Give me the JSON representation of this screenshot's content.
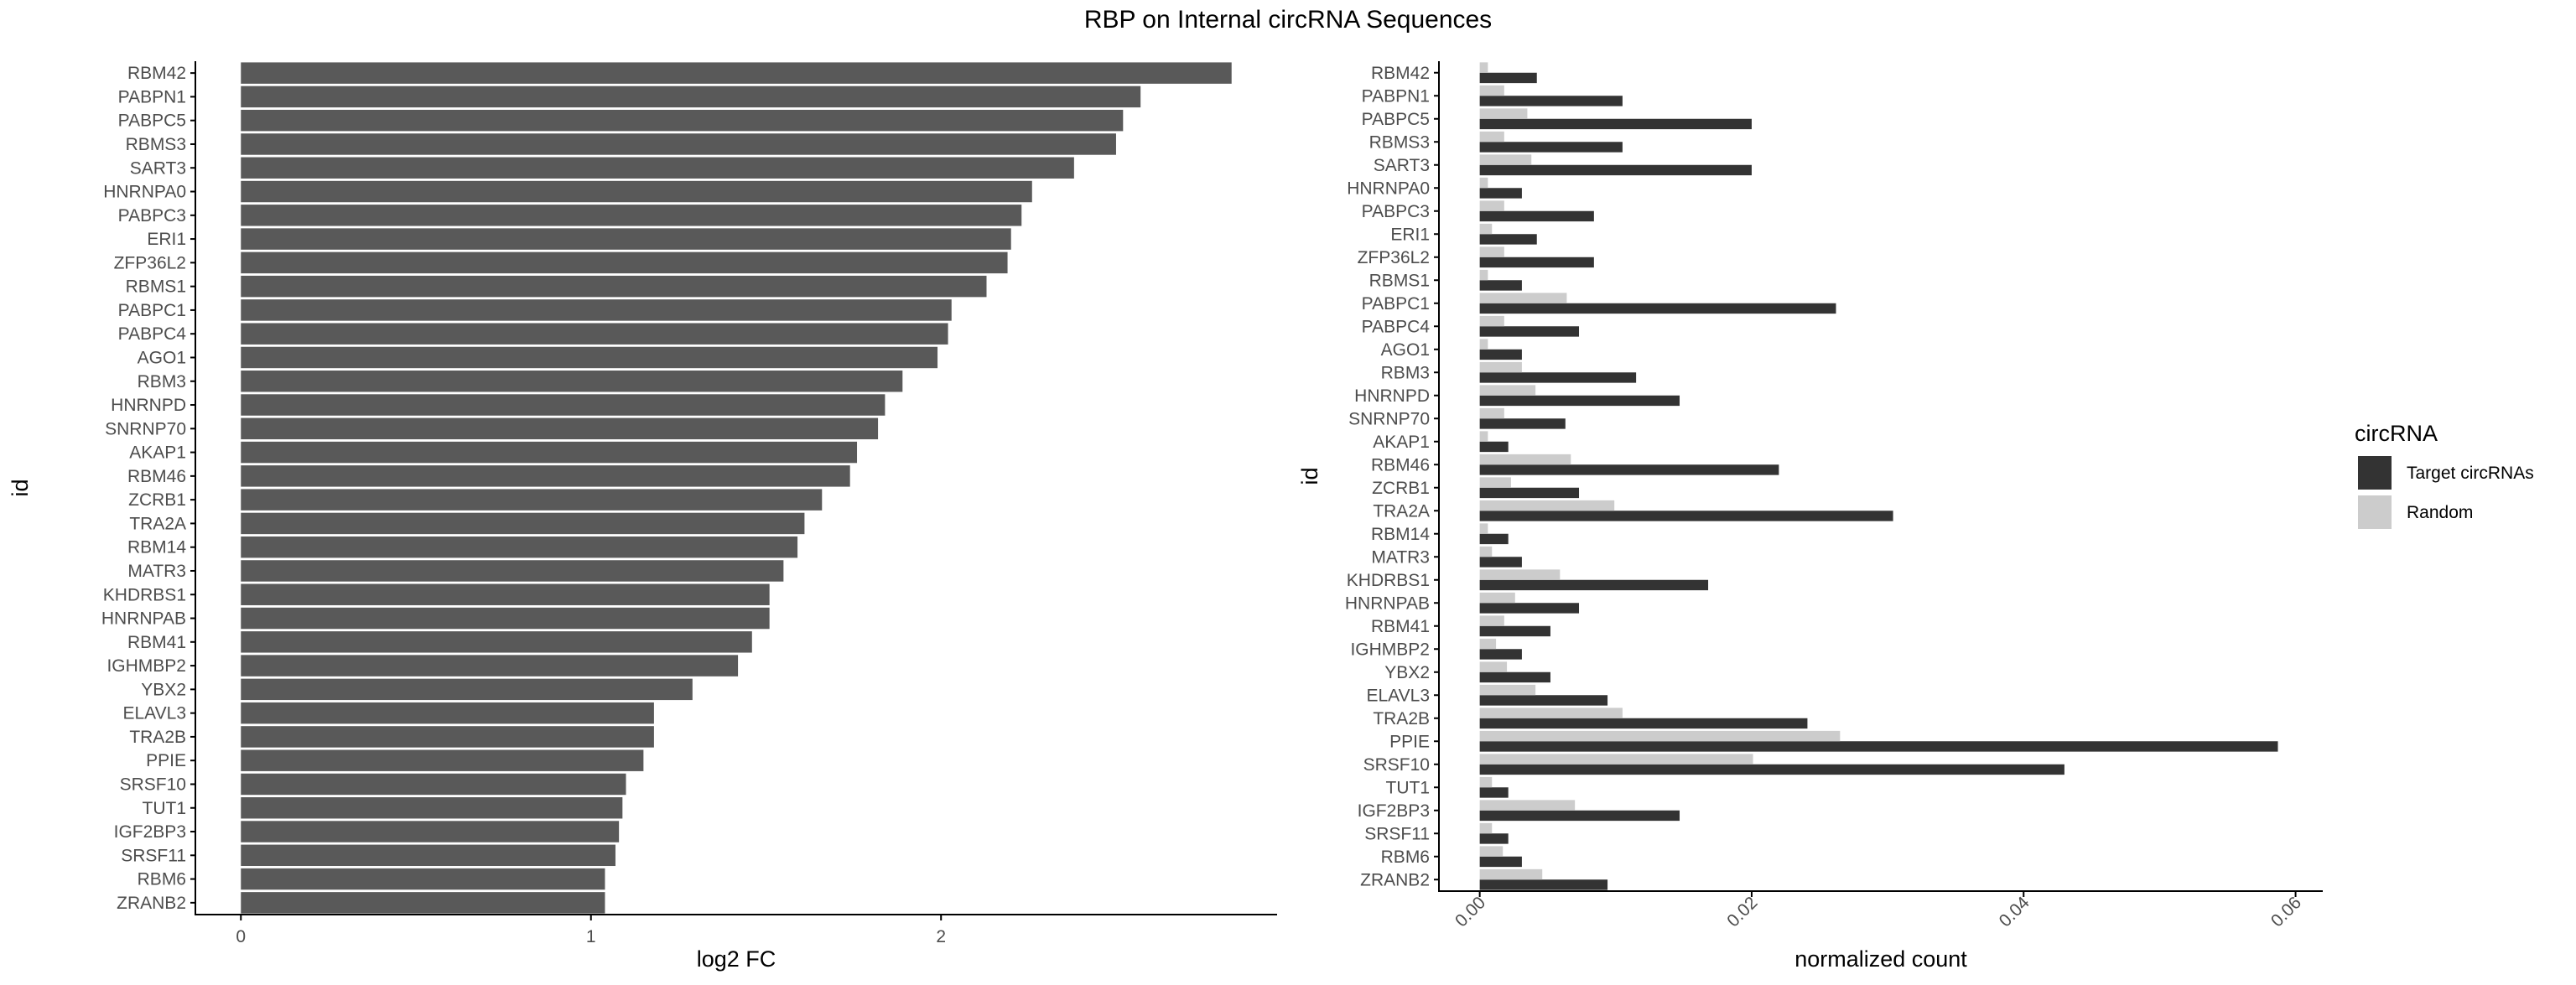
{
  "title": "RBP on Internal circRNA Sequences",
  "colors": {
    "single_bar": "#595959",
    "target": "#333333",
    "random": "#cccccc",
    "axis": "#000000",
    "tick_label": "#4d4d4d"
  },
  "chart_data": [
    {
      "type": "bar",
      "orientation": "horizontal",
      "title": "",
      "xlabel": "log2 FC",
      "ylabel": "id",
      "xlim": [
        -0.13,
        2.96
      ],
      "xticks": [
        0,
        1,
        2
      ],
      "grid": false,
      "categories": [
        "RBM42",
        "PABPN1",
        "PABPC5",
        "RBMS3",
        "SART3",
        "HNRNPA0",
        "PABPC3",
        "ERI1",
        "ZFP36L2",
        "RBMS1",
        "PABPC1",
        "PABPC4",
        "AGO1",
        "RBM3",
        "HNRNPD",
        "SNRNP70",
        "AKAP1",
        "RBM46",
        "ZCRB1",
        "TRA2A",
        "RBM14",
        "MATR3",
        "KHDRBS1",
        "HNRNPAB",
        "RBM41",
        "IGHMBP2",
        "YBX2",
        "ELAVL3",
        "TRA2B",
        "PPIE",
        "SRSF10",
        "TUT1",
        "IGF2BP3",
        "SRSF11",
        "RBM6",
        "ZRANB2"
      ],
      "values": [
        2.83,
        2.57,
        2.52,
        2.5,
        2.38,
        2.26,
        2.23,
        2.2,
        2.19,
        2.13,
        2.03,
        2.02,
        1.99,
        1.89,
        1.84,
        1.82,
        1.76,
        1.74,
        1.66,
        1.61,
        1.59,
        1.55,
        1.51,
        1.51,
        1.46,
        1.42,
        1.29,
        1.18,
        1.18,
        1.15,
        1.1,
        1.09,
        1.08,
        1.07,
        1.04,
        1.04
      ]
    },
    {
      "type": "bar",
      "orientation": "horizontal",
      "grouped": true,
      "title": "",
      "xlabel": "normalized count",
      "ylabel": "id",
      "xlim": [
        -0.003,
        0.062
      ],
      "xticks": [
        0.0,
        0.02,
        0.04,
        0.06
      ],
      "xtick_labels": [
        "0.00",
        "0.02",
        "0.04",
        "0.06"
      ],
      "grid": false,
      "legend": {
        "title": "circRNA",
        "position": "right"
      },
      "categories": [
        "RBM42",
        "PABPN1",
        "PABPC5",
        "RBMS3",
        "SART3",
        "HNRNPA0",
        "PABPC3",
        "ERI1",
        "ZFP36L2",
        "RBMS1",
        "PABPC1",
        "PABPC4",
        "AGO1",
        "RBM3",
        "HNRNPD",
        "SNRNP70",
        "AKAP1",
        "RBM46",
        "ZCRB1",
        "TRA2A",
        "RBM14",
        "MATR3",
        "KHDRBS1",
        "HNRNPAB",
        "RBM41",
        "IGHMBP2",
        "YBX2",
        "ELAVL3",
        "TRA2B",
        "PPIE",
        "SRSF10",
        "TUT1",
        "IGF2BP3",
        "SRSF11",
        "RBM6",
        "ZRANB2"
      ],
      "series": [
        {
          "name": "Target circRNAs",
          "values": [
            0.0042,
            0.0105,
            0.02,
            0.0105,
            0.02,
            0.0031,
            0.0084,
            0.0042,
            0.0084,
            0.0031,
            0.0262,
            0.0073,
            0.0031,
            0.0115,
            0.0147,
            0.0063,
            0.0021,
            0.022,
            0.0073,
            0.0304,
            0.0021,
            0.0031,
            0.0168,
            0.0073,
            0.0052,
            0.0031,
            0.0052,
            0.0094,
            0.0241,
            0.0587,
            0.043,
            0.0021,
            0.0147,
            0.0021,
            0.0031,
            0.0094
          ]
        },
        {
          "name": "Random",
          "values": [
            0.0006,
            0.0018,
            0.0035,
            0.0018,
            0.0038,
            0.0006,
            0.0018,
            0.0009,
            0.0018,
            0.0006,
            0.0064,
            0.0018,
            0.0006,
            0.0031,
            0.0041,
            0.0018,
            0.0006,
            0.0067,
            0.0023,
            0.0099,
            0.0006,
            0.0009,
            0.0059,
            0.0026,
            0.0018,
            0.0012,
            0.002,
            0.0041,
            0.0105,
            0.0265,
            0.0201,
            0.0009,
            0.007,
            0.0009,
            0.0017,
            0.0046
          ]
        }
      ]
    }
  ]
}
